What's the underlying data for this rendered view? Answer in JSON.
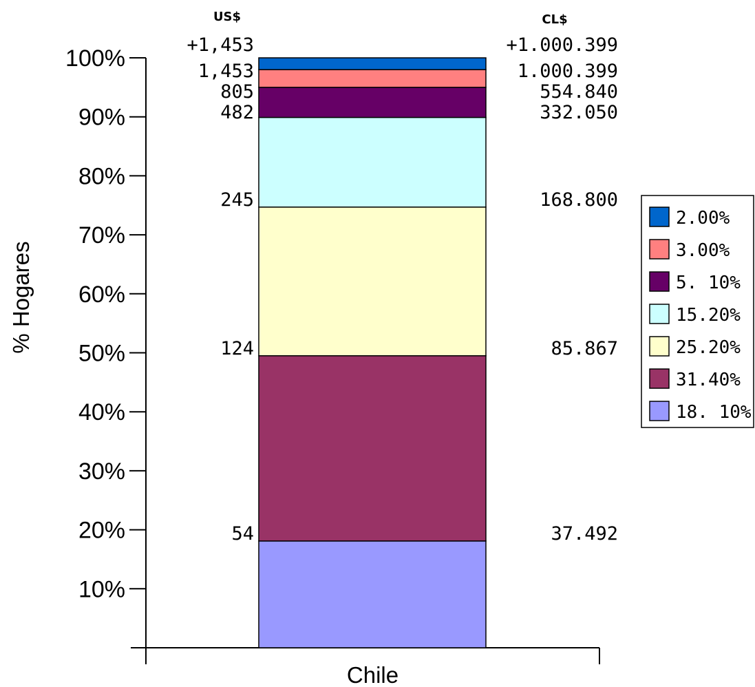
{
  "chart_data": {
    "type": "bar",
    "stacked": true,
    "categories": [
      "Chile"
    ],
    "ylabel": "% Hogares",
    "ylim": [
      0,
      100
    ],
    "yticks": [
      "10%",
      "20%",
      "30%",
      "40%",
      "50%",
      "60%",
      "70%",
      "80%",
      "90%",
      "100%"
    ],
    "series": [
      {
        "name": "18. 10%",
        "value": 18.1,
        "color": "#9999ff"
      },
      {
        "name": "31.40%",
        "value": 31.4,
        "color": "#993366"
      },
      {
        "name": "25.20%",
        "value": 25.2,
        "color": "#ffffcc"
      },
      {
        "name": "15.20%",
        "value": 15.2,
        "color": "#ccffff"
      },
      {
        "name": "5. 10%",
        "value": 5.1,
        "color": "#660066"
      },
      {
        "name": "3.00%",
        "value": 3.0,
        "color": "#ff8080"
      },
      {
        "name": "2.00%",
        "value": 2.0,
        "color": "#0066cc"
      }
    ],
    "legend_position": "right",
    "currency_headers": {
      "left": "US$",
      "right": "CL$"
    },
    "boundary_labels": [
      {
        "at": 18.1,
        "usd": "54",
        "clp": "37.492"
      },
      {
        "at": 49.5,
        "usd": "124",
        "clp": "85.867"
      },
      {
        "at": 74.7,
        "usd": "245",
        "clp": "168.800"
      },
      {
        "at": 89.9,
        "usd": "482",
        "clp": "332.050"
      },
      {
        "at": 95.0,
        "usd": "805",
        "clp": "554.840"
      },
      {
        "at": 98.0,
        "usd": "1,453",
        "clp": "1.000.399"
      },
      {
        "at": 100.0,
        "usd": "+1,453",
        "clp": "+1.000.399"
      }
    ]
  }
}
